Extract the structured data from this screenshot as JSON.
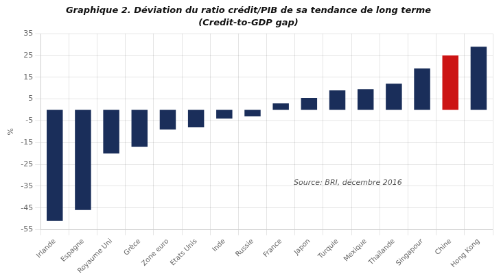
{
  "chart_data": {
    "type": "bar",
    "title": "Graphique 2. Déviation du ratio crédit/PIB de sa tendance de long terme",
    "subtitle": "(Credit-to-GDP gap)",
    "categories": [
      "Irlande",
      "Espagne",
      "Royaume Uni",
      "Grèce",
      "Zone euro",
      "Etats Unis",
      "Inde",
      "Russie",
      "France",
      "Japon",
      "Turquie",
      "Mexique",
      "Thaïlande",
      "Singapour",
      "Chine",
      "Hong Kong"
    ],
    "values": [
      -51,
      -46,
      -20,
      -17,
      -9,
      -8,
      -4,
      -3,
      3,
      5.5,
      9,
      9.5,
      12,
      19,
      25,
      29
    ],
    "colors": [
      "#1a2e5a",
      "#1a2e5a",
      "#1a2e5a",
      "#1a2e5a",
      "#1a2e5a",
      "#1a2e5a",
      "#1a2e5a",
      "#1a2e5a",
      "#1a2e5a",
      "#1a2e5a",
      "#1a2e5a",
      "#1a2e5a",
      "#1a2e5a",
      "#1a2e5a",
      "#cc1414",
      "#1a2e5a"
    ],
    "ylabel": "%",
    "annotations": [
      "Source: BRI, décembre 2016"
    ],
    "ylim": [
      -55,
      35
    ],
    "yticks": [
      -55,
      -45,
      -35,
      -25,
      -15,
      -5,
      5,
      15,
      25,
      35
    ],
    "grid": true
  }
}
